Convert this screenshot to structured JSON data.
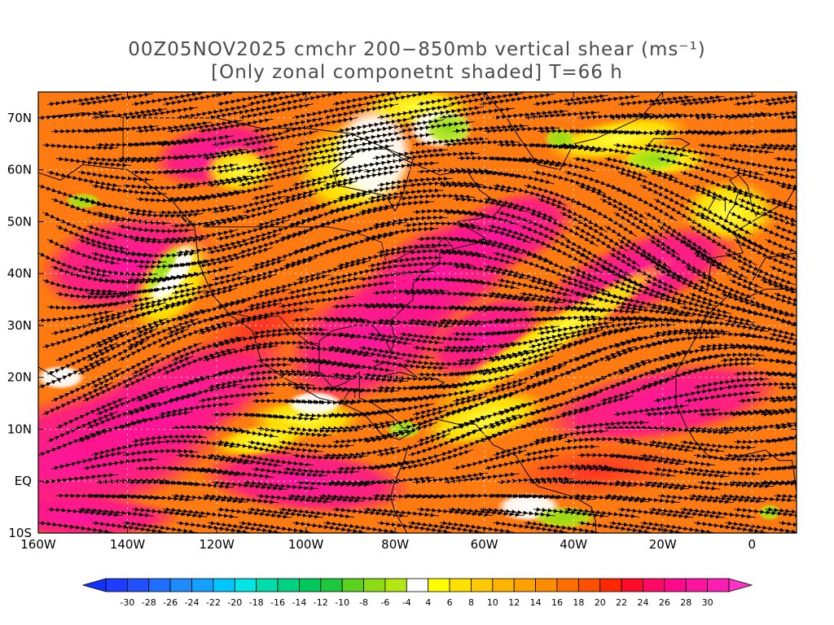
{
  "title": {
    "line1": "00Z05NOV2025 cmchr 200−850mb vertical shear (ms⁻¹)",
    "line2": "[Only zonal componetnt shaded] T=66 h"
  },
  "map": {
    "lon_range": [
      -160,
      10
    ],
    "lat_range": [
      -10,
      75
    ],
    "lon_ticks": [
      {
        "lon": -160,
        "label": "160W"
      },
      {
        "lon": -140,
        "label": "140W"
      },
      {
        "lon": -120,
        "label": "120W"
      },
      {
        "lon": -100,
        "label": "100W"
      },
      {
        "lon": -80,
        "label": "80W"
      },
      {
        "lon": -60,
        "label": "60W"
      },
      {
        "lon": -40,
        "label": "40W"
      },
      {
        "lon": -20,
        "label": "20W"
      },
      {
        "lon": 0,
        "label": "0"
      }
    ],
    "lat_ticks": [
      {
        "lat": -10,
        "label": "10S"
      },
      {
        "lat": 0,
        "label": "EQ"
      },
      {
        "lat": 10,
        "label": "10N"
      },
      {
        "lat": 20,
        "label": "20N"
      },
      {
        "lat": 30,
        "label": "30N"
      },
      {
        "lat": 40,
        "label": "40N"
      },
      {
        "lat": 50,
        "label": "50N"
      },
      {
        "lat": 60,
        "label": "60N"
      },
      {
        "lat": 70,
        "label": "70N"
      }
    ],
    "shading": "zonal component of 200-850mb vertical shear",
    "overlay": "shear streamlines with arrowheads, coastlines and borders"
  },
  "colorbar": {
    "labels": [
      "-30",
      "-28",
      "-26",
      "-24",
      "-22",
      "-20",
      "-18",
      "-16",
      "-14",
      "-12",
      "-10",
      "-8",
      "-6",
      "-4",
      "4",
      "6",
      "8",
      "10",
      "12",
      "14",
      "16",
      "18",
      "20",
      "22",
      "24",
      "26",
      "28",
      "30"
    ],
    "colors": [
      "#1e3cff",
      "#2050ff",
      "#1e6eff",
      "#1e8cff",
      "#14a0ff",
      "#00c8ff",
      "#00e6e6",
      "#00dcaa",
      "#00d282",
      "#00c85a",
      "#1ec83c",
      "#5ad21e",
      "#8cdc14",
      "#b4e614",
      "#ffffff",
      "#ffff00",
      "#ffe100",
      "#ffc800",
      "#ffb400",
      "#ffa000",
      "#ff8c00",
      "#ff6e00",
      "#ff5000",
      "#ff2800",
      "#ff0a28",
      "#ff0a64",
      "#ff0a8c",
      "#ff14a0",
      "#ff1eb4"
    ],
    "low_arrow_color": "#1432ff",
    "high_arrow_color": "#ff32c8"
  }
}
